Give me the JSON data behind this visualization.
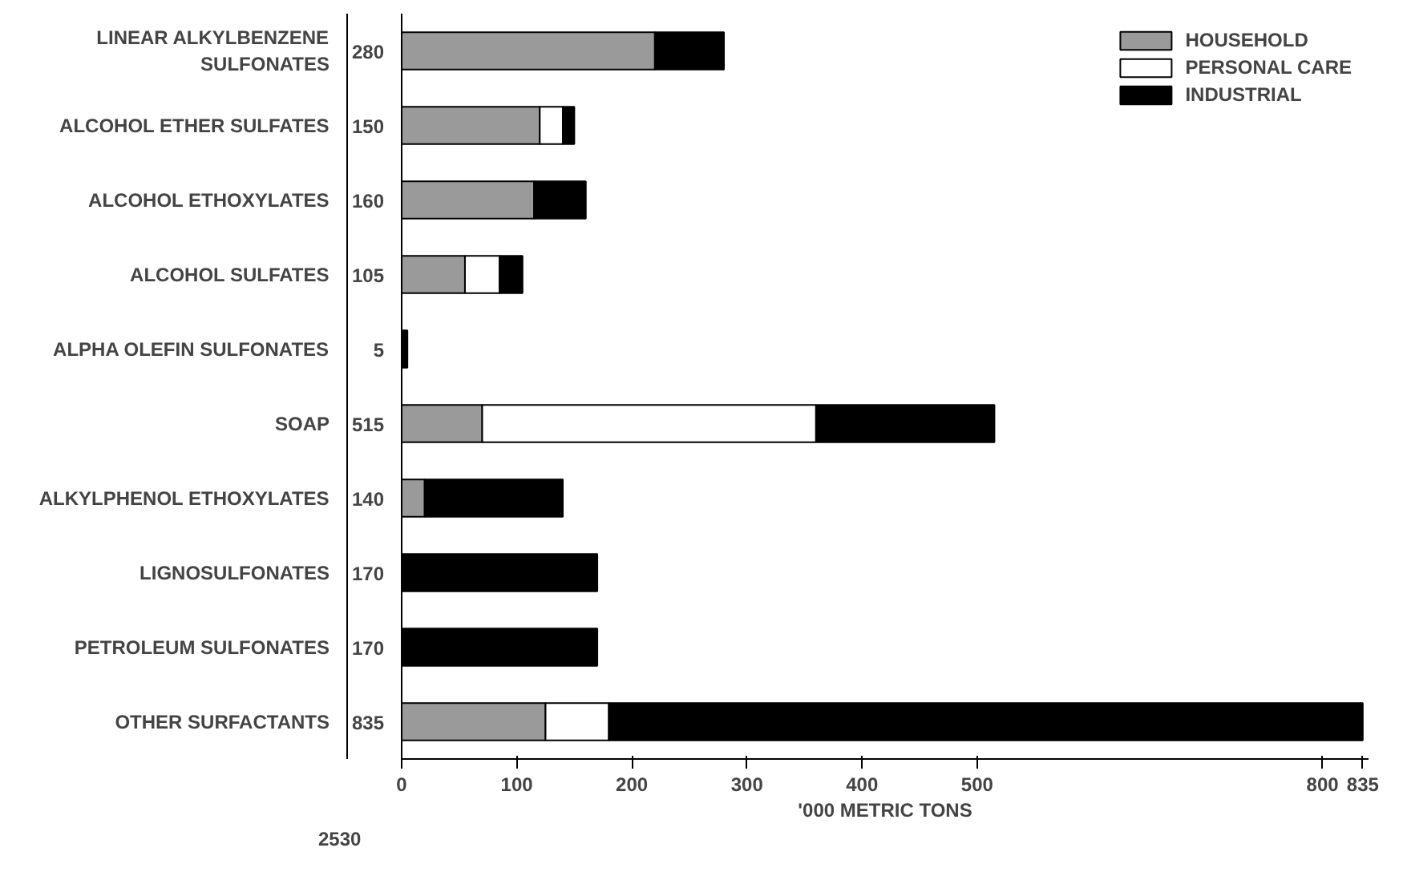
{
  "chart_data": {
    "type": "bar",
    "orientation": "horizontal",
    "stacked": true,
    "xlabel": "'000 METRIC TONS",
    "categories": [
      "LINEAR ALKYLBENZENE SULFONATES",
      "ALCOHOL ETHER SULFATES",
      "ALCOHOL ETHOXYLATES",
      "ALCOHOL SULFATES",
      "ALPHA OLEFIN SULFONATES",
      "SOAP",
      "ALKYLPHENOL ETHOXYLATES",
      "LIGNOSULFONATES",
      "PETROLEUM SULFONATES",
      "OTHER SURFACTANTS"
    ],
    "series": [
      {
        "name": "HOUSEHOLD",
        "color": "#9a9a9a",
        "values": [
          220,
          120,
          115,
          55,
          null,
          70,
          20,
          null,
          null,
          125
        ]
      },
      {
        "name": "PERSONAL CARE",
        "color": "#ffffff",
        "values": [
          null,
          20,
          null,
          30,
          null,
          290,
          null,
          null,
          null,
          55
        ]
      },
      {
        "name": "INDUSTRIAL",
        "color": "#000000",
        "values": [
          60,
          10,
          45,
          20,
          5,
          155,
          120,
          170,
          170,
          655
        ]
      }
    ],
    "totals": [
      "280",
      "150",
      "160",
      "105",
      "5",
      "515",
      "140",
      "170",
      "170",
      "835"
    ],
    "annotations": [
      "2530"
    ],
    "xlim": [
      0,
      840
    ],
    "xticks": [
      0,
      100,
      200,
      300,
      400,
      500,
      800,
      835
    ],
    "grid": false,
    "legend": "top right"
  }
}
